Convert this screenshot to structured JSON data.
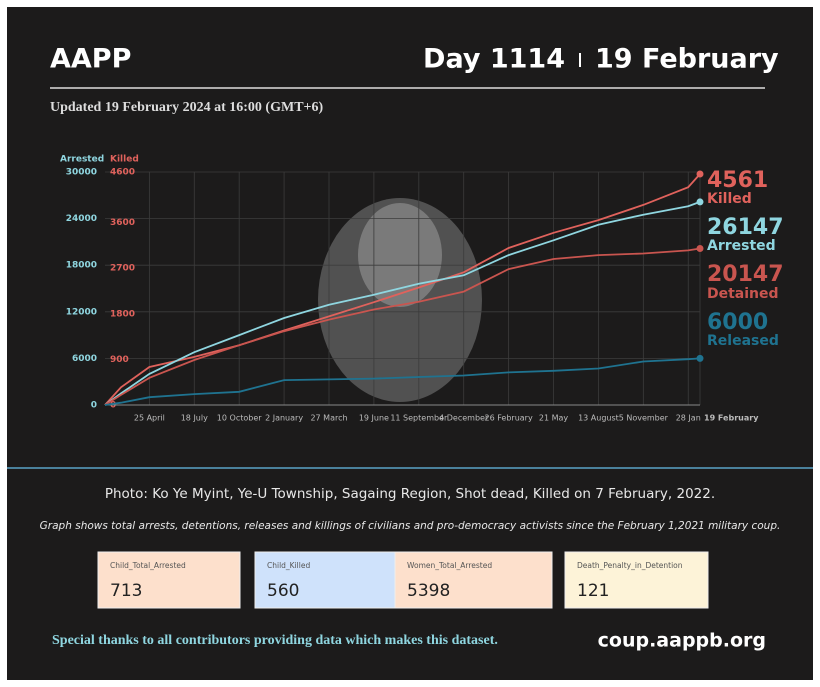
{
  "header": {
    "org": "AAPP",
    "day": "Day 1114",
    "date": "19 February",
    "updated": "Updated 19 February 2024 at 16:00 (GMT+6)"
  },
  "chart_data": {
    "type": "line",
    "ylabel": "Arrested",
    "y2label": "Killed",
    "x": [
      0,
      30,
      83,
      167,
      251,
      335,
      419,
      503,
      587,
      671,
      755,
      839,
      923,
      1007,
      1091,
      1113
    ],
    "xlim": [
      0,
      1113
    ],
    "xticks": [
      {
        "value": 83,
        "label": "25 April"
      },
      {
        "value": 167,
        "label": "18 July"
      },
      {
        "value": 251,
        "label": "10 October"
      },
      {
        "value": 335,
        "label": "2 January"
      },
      {
        "value": 419,
        "label": "27 March"
      },
      {
        "value": 503,
        "label": "19 June"
      },
      {
        "value": 587,
        "label": "11 September"
      },
      {
        "value": 671,
        "label": "4 December"
      },
      {
        "value": 755,
        "label": "26 February"
      },
      {
        "value": 839,
        "label": "21 May"
      },
      {
        "value": 923,
        "label": "13 August"
      },
      {
        "value": 1007,
        "label": "5 November"
      },
      {
        "value": 1091,
        "label": "28 Jan"
      },
      {
        "value": 1113,
        "label": "19 February"
      }
    ],
    "ylim": [
      0,
      30000
    ],
    "yticks": [
      0,
      6000,
      12000,
      18000,
      24000,
      30000
    ],
    "y2lim": [
      0,
      4600
    ],
    "y2ticks": [
      0,
      900,
      1800,
      2700,
      3600,
      4600
    ],
    "grid": true,
    "series": [
      {
        "name": "Killed",
        "color": "#e0625c",
        "axis": "y2",
        "values": [
          0,
          350,
          750,
          950,
          1180,
          1470,
          1750,
          2030,
          2320,
          2620,
          3100,
          3400,
          3650,
          3950,
          4300,
          4561
        ]
      },
      {
        "name": "Arrested",
        "color": "#8fd6e0",
        "values": [
          0,
          1500,
          4000,
          6800,
          9000,
          11200,
          12900,
          14200,
          15600,
          16700,
          19300,
          21200,
          23200,
          24500,
          25600,
          26147
        ]
      },
      {
        "name": "Detained",
        "color": "#c9554f",
        "values": [
          0,
          1300,
          3500,
          5800,
          7700,
          9500,
          11000,
          12300,
          13300,
          14600,
          17500,
          18800,
          19300,
          19500,
          19900,
          20147
        ]
      },
      {
        "name": "Released",
        "color": "#1f7390",
        "values": [
          0,
          300,
          1000,
          1400,
          1700,
          3200,
          3300,
          3400,
          3600,
          3800,
          4200,
          4400,
          4700,
          5600,
          5900,
          6000
        ]
      }
    ]
  },
  "caption": "Photo: Ko Ye Myint, Ye-U Township, Sagaing Region, Shot dead, Killed on 7 February, 2022.",
  "note": "Graph shows total arrests, detentions, releases and killings of civilians and pro-democracy activists since the February 1,2021 military coup.",
  "stats": [
    {
      "label": "Child_Total_Arrested",
      "value": 713
    },
    {
      "label": "Child_Killed",
      "value": 560
    },
    {
      "label": "Women_Total_Arrested",
      "value": 5398
    },
    {
      "label": "Death_Penalty_in_Detention",
      "value": 121
    }
  ],
  "footer": {
    "thanks": "Special thanks to all contributors providing data which makes this dataset.",
    "url": "coup.aappb.org"
  }
}
